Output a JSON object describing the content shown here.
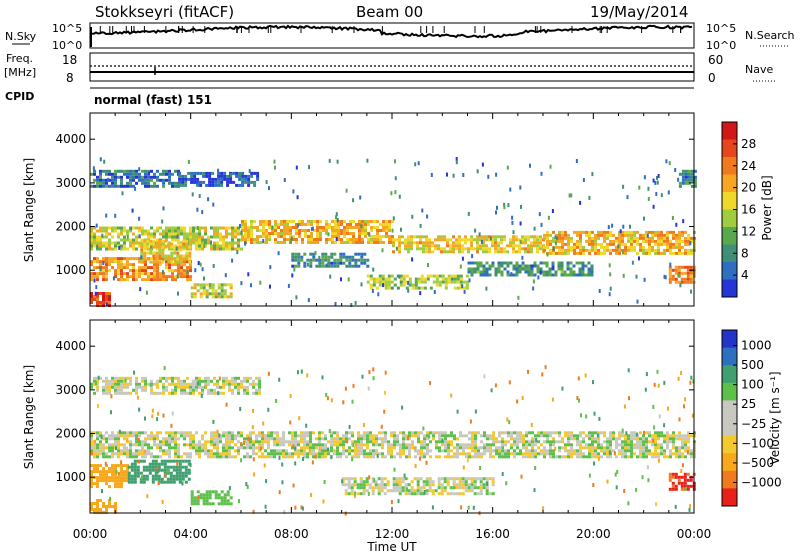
{
  "header": {
    "radar": "Stokkseyri (fitACF)",
    "beam": "Beam 00",
    "date": "19/May/2014"
  },
  "panels": {
    "nsky": {
      "label": "N.Sky",
      "ytick_hi": "10^5",
      "ytick_lo": "10^0",
      "right_label": "N.Search",
      "right_tick_hi": "10^5",
      "right_tick_lo": "10^0"
    },
    "freq": {
      "label_line1": "Freq.",
      "label_line2": "[MHz]",
      "ytick_hi": "18",
      "ytick_lo": "8",
      "right_label": "Nave",
      "right_tick_hi": "60",
      "right_tick_lo": "0"
    },
    "cpid": {
      "label": "CPID",
      "value": "normal (fast) 151"
    }
  },
  "colors": {
    "power": [
      "#2535d8",
      "#2e6fc2",
      "#3f8f77",
      "#5aa84e",
      "#9fcd3f",
      "#f0d82a",
      "#f5a623",
      "#f07a1e",
      "#e5461b",
      "#d11818"
    ],
    "velocity": [
      "#e8211b",
      "#f07a1e",
      "#f7a81c",
      "#f3c92f",
      "#c8c8c0",
      "#c8c8c0",
      "#5cc04a",
      "#3f9f6e",
      "#2e70c0",
      "#2335c8"
    ]
  },
  "chart_data": [
    {
      "type": "heatmap",
      "name": "Power",
      "ylabel": "Slant Range [km]",
      "xlabel": "",
      "x_ticks": [
        "00:00",
        "04:00",
        "08:00",
        "12:00",
        "16:00",
        "20:00",
        "00:00"
      ],
      "y_ticks": [
        1000,
        2000,
        3000,
        4000
      ],
      "ylim": [
        180,
        4600
      ],
      "colorbar": {
        "label": "Power [dB]",
        "ticks": [
          4,
          8,
          12,
          16,
          20,
          24,
          28
        ],
        "range": [
          0,
          32
        ]
      },
      "bands": [
        {
          "t0": 0.0,
          "t1": 3.5,
          "r0": 2900,
          "r1": 3300,
          "level": 6
        },
        {
          "t0": 3.5,
          "t1": 6.7,
          "r0": 2950,
          "r1": 3250,
          "level": 4
        },
        {
          "t0": 0.0,
          "t1": 6.0,
          "r0": 1500,
          "r1": 2000,
          "level": 16
        },
        {
          "t0": 6.0,
          "t1": 12.0,
          "r0": 1650,
          "r1": 2150,
          "level": 20
        },
        {
          "t0": 12.0,
          "t1": 18.0,
          "r0": 1450,
          "r1": 1800,
          "level": 18
        },
        {
          "t0": 18.0,
          "t1": 24.0,
          "r0": 1400,
          "r1": 1900,
          "level": 20
        },
        {
          "t0": 0.0,
          "t1": 4.0,
          "r0": 800,
          "r1": 1300,
          "level": 22
        },
        {
          "t0": 2.0,
          "t1": 4.0,
          "r0": 1200,
          "r1": 1700,
          "level": 18
        },
        {
          "t0": 8.0,
          "t1": 11.0,
          "r0": 1100,
          "r1": 1400,
          "level": 8
        },
        {
          "t0": 11.0,
          "t1": 15.0,
          "r0": 600,
          "r1": 900,
          "level": 14
        },
        {
          "t0": 15.0,
          "t1": 20.0,
          "r0": 900,
          "r1": 1200,
          "level": 8
        },
        {
          "t0": 23.0,
          "t1": 24.0,
          "r0": 700,
          "r1": 1100,
          "level": 24
        },
        {
          "t0": 0.0,
          "t1": 0.8,
          "r0": 180,
          "r1": 500,
          "level": 28
        },
        {
          "t0": 4.0,
          "t1": 5.6,
          "r0": 400,
          "r1": 700,
          "level": 16
        },
        {
          "t0": 23.4,
          "t1": 24.0,
          "r0": 2900,
          "r1": 3300,
          "level": 8
        }
      ]
    },
    {
      "type": "heatmap",
      "name": "Velocity",
      "ylabel": "Slant Range [km]",
      "xlabel": "Time UT",
      "x_ticks": [
        "00:00",
        "04:00",
        "08:00",
        "12:00",
        "16:00",
        "20:00",
        "00:00"
      ],
      "y_ticks": [
        1000,
        2000,
        3000,
        4000
      ],
      "ylim": [
        180,
        4600
      ],
      "colorbar": {
        "label": "Velocity [m s⁻¹]",
        "ticks": [
          "1000",
          "500",
          "100",
          "25",
          "−25",
          "−100",
          "−500",
          "−1000"
        ],
        "range": [
          -1200,
          1200
        ]
      },
      "bands": [
        {
          "t0": 0.0,
          "t1": 6.7,
          "r0": 2900,
          "r1": 3300,
          "level": 0
        },
        {
          "t0": 0.0,
          "t1": 24.0,
          "r0": 1450,
          "r1": 2050,
          "level": 0
        },
        {
          "t0": 0.0,
          "t1": 1.5,
          "r0": 800,
          "r1": 1300,
          "level": -150
        },
        {
          "t0": 1.5,
          "t1": 4.0,
          "r0": 900,
          "r1": 1400,
          "level": 500
        },
        {
          "t0": 10.0,
          "t1": 16.0,
          "r0": 600,
          "r1": 1000,
          "level": 0
        },
        {
          "t0": 23.0,
          "t1": 24.0,
          "r0": 700,
          "r1": 1100,
          "level": -700
        },
        {
          "t0": 0.0,
          "t1": 1.0,
          "r0": 180,
          "r1": 500,
          "level": -150
        },
        {
          "t0": 4.0,
          "t1": 5.6,
          "r0": 400,
          "r1": 700,
          "level": 150
        }
      ]
    }
  ]
}
